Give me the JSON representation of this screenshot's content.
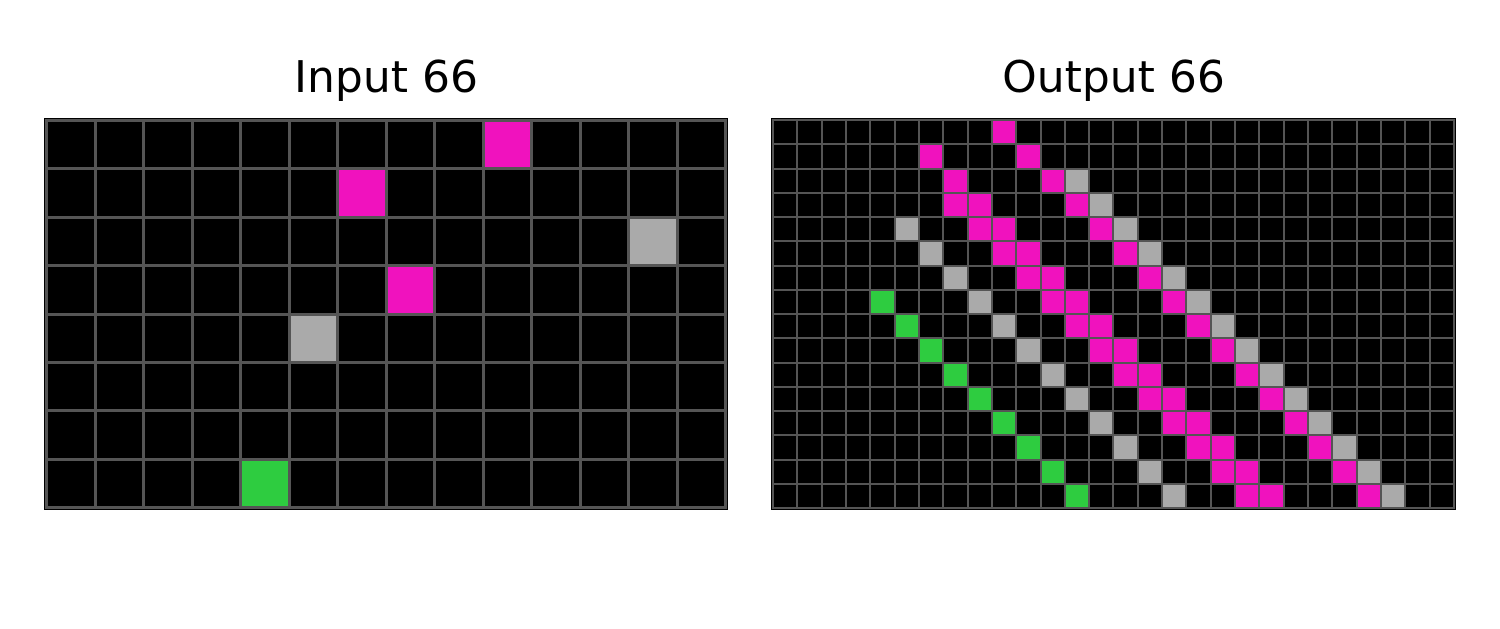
{
  "palette": {
    "0": "#000000",
    "3": "#2ECC40",
    "5": "#AAAAAA",
    "6": "#F012BE"
  },
  "grid_line_color": "#555555",
  "input": {
    "title": "Input 66",
    "rows": 8,
    "cols": 14,
    "cells": [
      {
        "r": 0,
        "c": 9,
        "v": 6
      },
      {
        "r": 1,
        "c": 6,
        "v": 6
      },
      {
        "r": 2,
        "c": 12,
        "v": 5
      },
      {
        "r": 3,
        "c": 7,
        "v": 6
      },
      {
        "r": 4,
        "c": 5,
        "v": 5
      },
      {
        "r": 7,
        "c": 4,
        "v": 3
      }
    ]
  },
  "output": {
    "title": "Output 66",
    "rows": 16,
    "cols": 28,
    "cells": [
      {
        "r": 0,
        "c": 9,
        "v": 6
      },
      {
        "r": 1,
        "c": 6,
        "v": 6
      },
      {
        "r": 1,
        "c": 10,
        "v": 6
      },
      {
        "r": 2,
        "c": 7,
        "v": 6
      },
      {
        "r": 2,
        "c": 11,
        "v": 6
      },
      {
        "r": 2,
        "c": 12,
        "v": 5
      },
      {
        "r": 3,
        "c": 7,
        "v": 6
      },
      {
        "r": 3,
        "c": 8,
        "v": 6
      },
      {
        "r": 3,
        "c": 12,
        "v": 6
      },
      {
        "r": 3,
        "c": 13,
        "v": 5
      },
      {
        "r": 4,
        "c": 5,
        "v": 5
      },
      {
        "r": 4,
        "c": 8,
        "v": 6
      },
      {
        "r": 4,
        "c": 9,
        "v": 6
      },
      {
        "r": 4,
        "c": 13,
        "v": 6
      },
      {
        "r": 4,
        "c": 14,
        "v": 5
      },
      {
        "r": 5,
        "c": 6,
        "v": 5
      },
      {
        "r": 5,
        "c": 9,
        "v": 6
      },
      {
        "r": 5,
        "c": 10,
        "v": 6
      },
      {
        "r": 5,
        "c": 14,
        "v": 6
      },
      {
        "r": 5,
        "c": 15,
        "v": 5
      },
      {
        "r": 6,
        "c": 7,
        "v": 5
      },
      {
        "r": 6,
        "c": 10,
        "v": 6
      },
      {
        "r": 6,
        "c": 11,
        "v": 6
      },
      {
        "r": 6,
        "c": 15,
        "v": 6
      },
      {
        "r": 6,
        "c": 16,
        "v": 5
      },
      {
        "r": 7,
        "c": 4,
        "v": 3
      },
      {
        "r": 7,
        "c": 8,
        "v": 5
      },
      {
        "r": 7,
        "c": 11,
        "v": 6
      },
      {
        "r": 7,
        "c": 12,
        "v": 6
      },
      {
        "r": 7,
        "c": 16,
        "v": 6
      },
      {
        "r": 7,
        "c": 17,
        "v": 5
      },
      {
        "r": 8,
        "c": 5,
        "v": 3
      },
      {
        "r": 8,
        "c": 9,
        "v": 5
      },
      {
        "r": 8,
        "c": 12,
        "v": 6
      },
      {
        "r": 8,
        "c": 13,
        "v": 6
      },
      {
        "r": 8,
        "c": 17,
        "v": 6
      },
      {
        "r": 8,
        "c": 18,
        "v": 5
      },
      {
        "r": 9,
        "c": 6,
        "v": 3
      },
      {
        "r": 9,
        "c": 10,
        "v": 5
      },
      {
        "r": 9,
        "c": 13,
        "v": 6
      },
      {
        "r": 9,
        "c": 14,
        "v": 6
      },
      {
        "r": 9,
        "c": 18,
        "v": 6
      },
      {
        "r": 9,
        "c": 19,
        "v": 5
      },
      {
        "r": 10,
        "c": 7,
        "v": 3
      },
      {
        "r": 10,
        "c": 11,
        "v": 5
      },
      {
        "r": 10,
        "c": 14,
        "v": 6
      },
      {
        "r": 10,
        "c": 15,
        "v": 6
      },
      {
        "r": 10,
        "c": 19,
        "v": 6
      },
      {
        "r": 10,
        "c": 20,
        "v": 5
      },
      {
        "r": 11,
        "c": 8,
        "v": 3
      },
      {
        "r": 11,
        "c": 12,
        "v": 5
      },
      {
        "r": 11,
        "c": 15,
        "v": 6
      },
      {
        "r": 11,
        "c": 16,
        "v": 6
      },
      {
        "r": 11,
        "c": 20,
        "v": 6
      },
      {
        "r": 11,
        "c": 21,
        "v": 5
      },
      {
        "r": 12,
        "c": 9,
        "v": 3
      },
      {
        "r": 12,
        "c": 13,
        "v": 5
      },
      {
        "r": 12,
        "c": 16,
        "v": 6
      },
      {
        "r": 12,
        "c": 17,
        "v": 6
      },
      {
        "r": 12,
        "c": 21,
        "v": 6
      },
      {
        "r": 12,
        "c": 22,
        "v": 5
      },
      {
        "r": 13,
        "c": 10,
        "v": 3
      },
      {
        "r": 13,
        "c": 14,
        "v": 5
      },
      {
        "r": 13,
        "c": 17,
        "v": 6
      },
      {
        "r": 13,
        "c": 18,
        "v": 6
      },
      {
        "r": 13,
        "c": 22,
        "v": 6
      },
      {
        "r": 13,
        "c": 23,
        "v": 5
      },
      {
        "r": 14,
        "c": 11,
        "v": 3
      },
      {
        "r": 14,
        "c": 15,
        "v": 5
      },
      {
        "r": 14,
        "c": 18,
        "v": 6
      },
      {
        "r": 14,
        "c": 19,
        "v": 6
      },
      {
        "r": 14,
        "c": 23,
        "v": 6
      },
      {
        "r": 14,
        "c": 24,
        "v": 5
      },
      {
        "r": 15,
        "c": 12,
        "v": 3
      },
      {
        "r": 15,
        "c": 16,
        "v": 5
      },
      {
        "r": 15,
        "c": 19,
        "v": 6
      },
      {
        "r": 15,
        "c": 20,
        "v": 6
      },
      {
        "r": 15,
        "c": 24,
        "v": 6
      },
      {
        "r": 15,
        "c": 25,
        "v": 5
      }
    ]
  }
}
